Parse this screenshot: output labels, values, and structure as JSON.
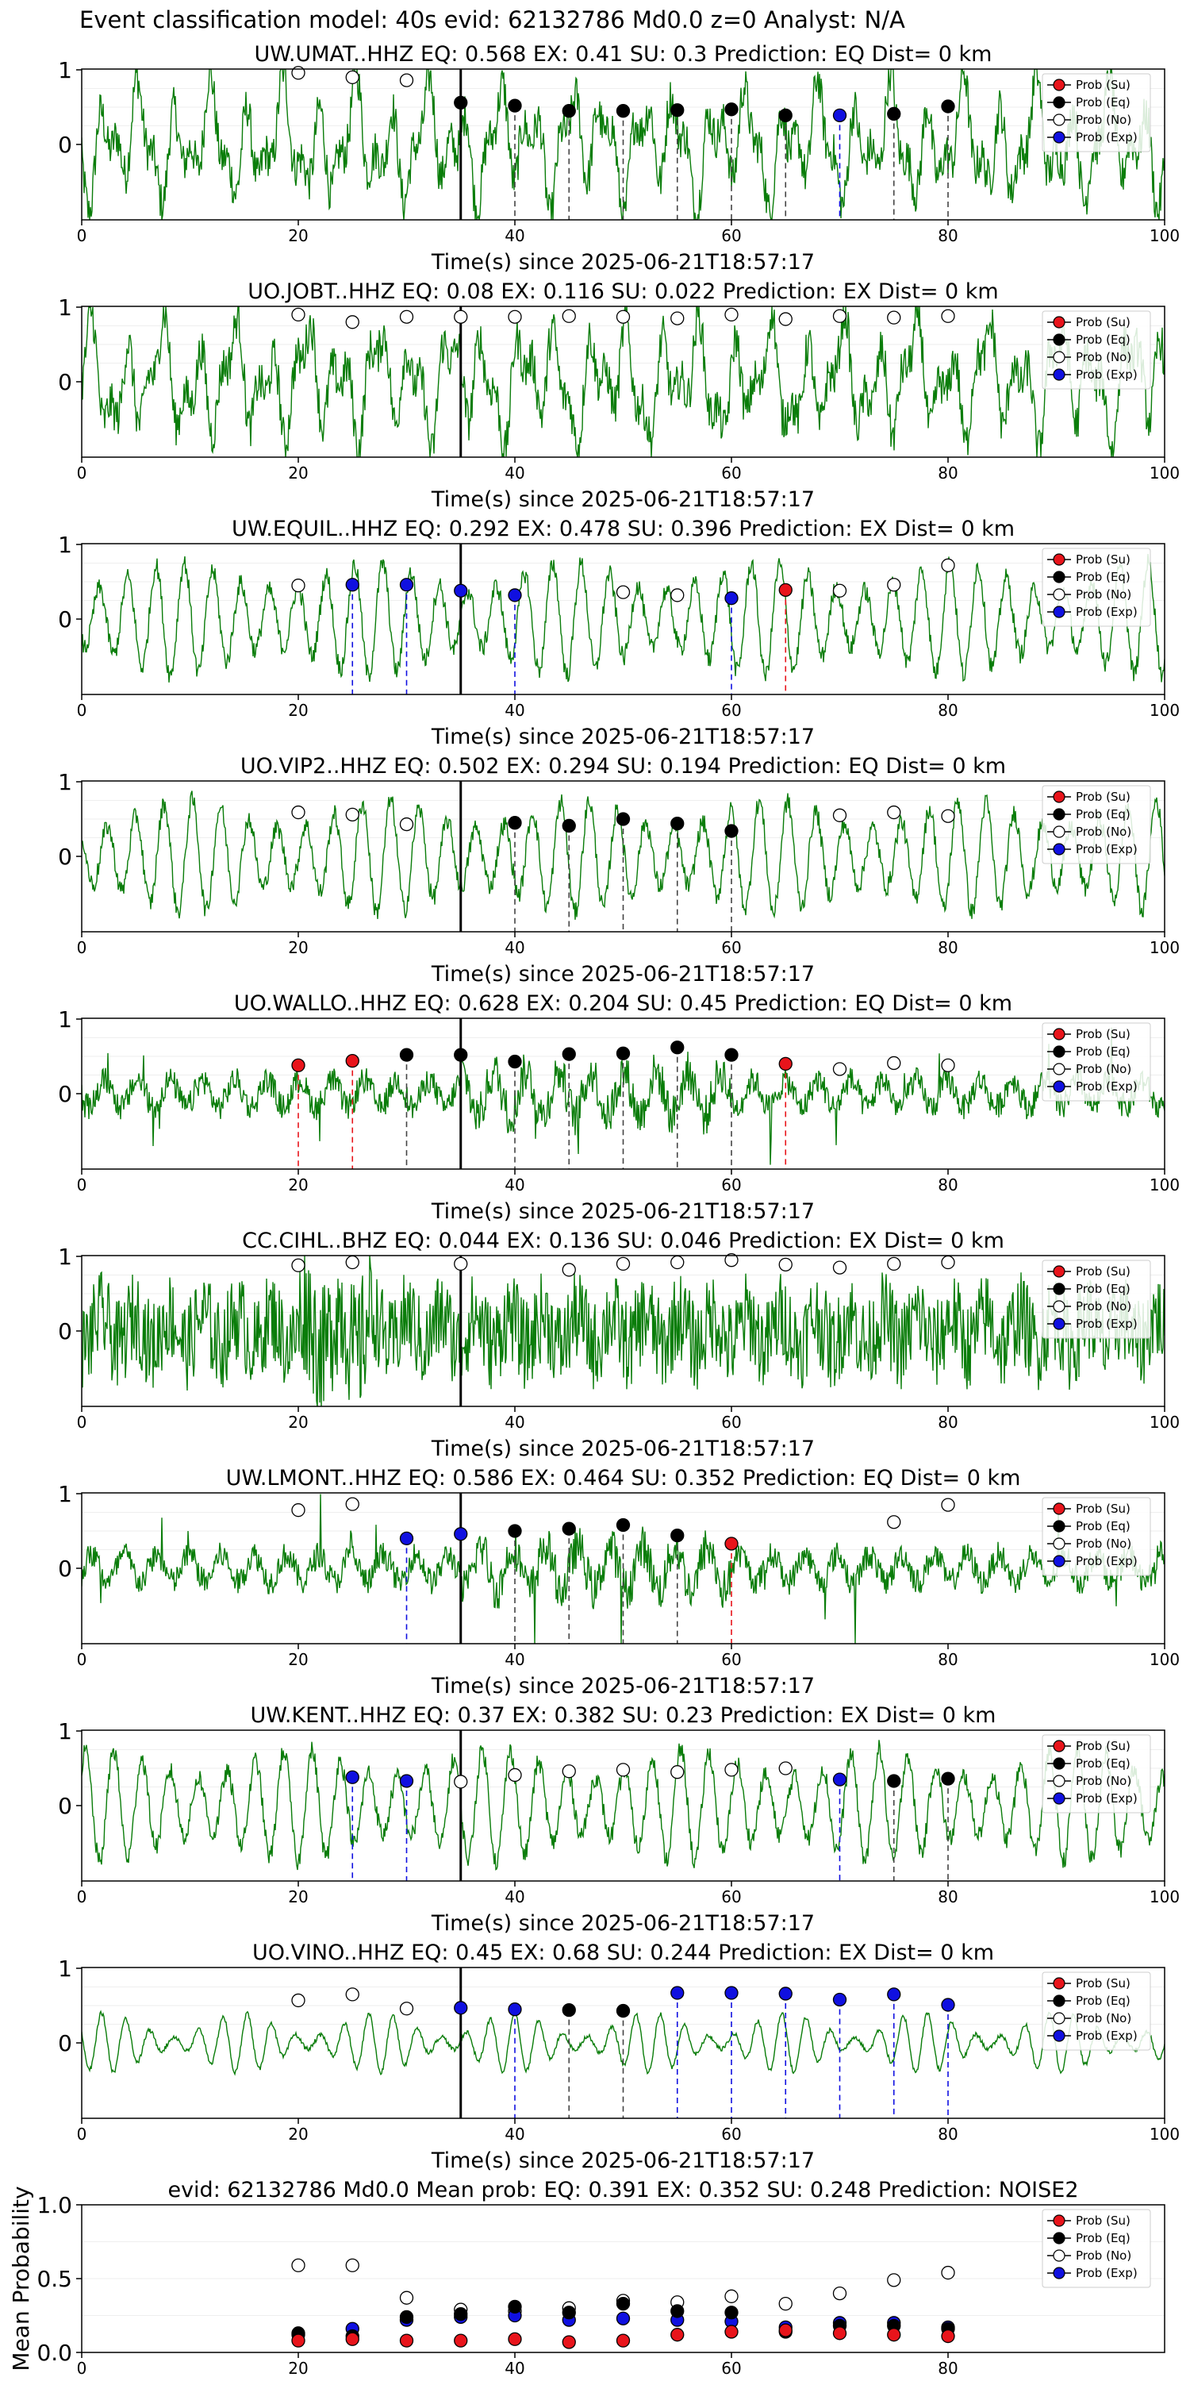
{
  "figure_title": "Event classification model: 40s evid: 62132786 Md0.0 z=0 Analyst: N/A",
  "legend": [
    {
      "label": "Prob (Su)",
      "fill": "#e8141b"
    },
    {
      "label": "Prob (Eq)",
      "fill": "#000000"
    },
    {
      "label": "Prob (No)",
      "fill": "#ffffff"
    },
    {
      "label": "Prob (Exp)",
      "fill": "#1010e0"
    }
  ],
  "colors": {
    "trace": "#0a7d0a",
    "eq": "#000000",
    "su": "#e8141b",
    "no": "#ffffff",
    "exp": "#1010e0",
    "pick": "#000000"
  },
  "chart_data": [
    {
      "type": "line",
      "title": "UW.UMAT..HHZ   EQ: 0.568  EX: 0.41  SU: 0.3   Prediction: EQ    Dist= 0 km",
      "xlabel": "Time(s) since 2025-06-21T18:57:17",
      "xlim": [
        0,
        100
      ],
      "ylim": [
        -1,
        1
      ],
      "xticks": [
        0,
        20,
        40,
        60,
        80,
        100
      ],
      "yticks": [
        0,
        1
      ],
      "pick_time": 35,
      "trace_style": "broadband",
      "points": [
        {
          "t": 20,
          "p": 0.96,
          "c": "No"
        },
        {
          "t": 25,
          "p": 0.9,
          "c": "No"
        },
        {
          "t": 30,
          "p": 0.86,
          "c": "No"
        },
        {
          "t": 35,
          "p": 0.56,
          "c": "Eq"
        },
        {
          "t": 40,
          "p": 0.52,
          "c": "Eq"
        },
        {
          "t": 45,
          "p": 0.45,
          "c": "Eq"
        },
        {
          "t": 50,
          "p": 0.45,
          "c": "Eq"
        },
        {
          "t": 55,
          "p": 0.46,
          "c": "Eq"
        },
        {
          "t": 60,
          "p": 0.47,
          "c": "Eq"
        },
        {
          "t": 65,
          "p": 0.39,
          "c": "Eq"
        },
        {
          "t": 70,
          "p": 0.39,
          "c": "Exp"
        },
        {
          "t": 75,
          "p": 0.41,
          "c": "Eq"
        },
        {
          "t": 80,
          "p": 0.51,
          "c": "Eq"
        }
      ]
    },
    {
      "type": "line",
      "title": "UO.JOBT..HHZ   EQ: 0.08  EX: 0.116  SU: 0.022   Prediction: EX    Dist= 0 km",
      "xlabel": "Time(s) since 2025-06-21T18:57:17",
      "xlim": [
        0,
        100
      ],
      "ylim": [
        -1,
        1
      ],
      "xticks": [
        0,
        20,
        40,
        60,
        80,
        100
      ],
      "yticks": [
        0,
        1
      ],
      "pick_time": 35,
      "trace_style": "broadband",
      "points": [
        {
          "t": 20,
          "p": 0.9,
          "c": "No"
        },
        {
          "t": 25,
          "p": 0.8,
          "c": "No"
        },
        {
          "t": 30,
          "p": 0.87,
          "c": "No"
        },
        {
          "t": 35,
          "p": 0.87,
          "c": "No"
        },
        {
          "t": 40,
          "p": 0.87,
          "c": "No"
        },
        {
          "t": 45,
          "p": 0.88,
          "c": "No"
        },
        {
          "t": 50,
          "p": 0.87,
          "c": "No"
        },
        {
          "t": 55,
          "p": 0.85,
          "c": "No"
        },
        {
          "t": 60,
          "p": 0.9,
          "c": "No"
        },
        {
          "t": 65,
          "p": 0.84,
          "c": "No"
        },
        {
          "t": 70,
          "p": 0.88,
          "c": "No"
        },
        {
          "t": 75,
          "p": 0.86,
          "c": "No"
        },
        {
          "t": 80,
          "p": 0.88,
          "c": "No"
        }
      ]
    },
    {
      "type": "line",
      "title": "UW.EQUIL..HHZ   EQ: 0.292  EX: 0.478  SU: 0.396   Prediction: EX    Dist= 0 km",
      "xlabel": "Time(s) since 2025-06-21T18:57:17",
      "xlim": [
        0,
        100
      ],
      "ylim": [
        -1,
        1
      ],
      "xticks": [
        0,
        20,
        40,
        60,
        80,
        100
      ],
      "yticks": [
        0,
        1
      ],
      "pick_time": 35,
      "trace_style": "oscillating",
      "points": [
        {
          "t": 20,
          "p": 0.45,
          "c": "No"
        },
        {
          "t": 25,
          "p": 0.46,
          "c": "Exp"
        },
        {
          "t": 30,
          "p": 0.46,
          "c": "Exp"
        },
        {
          "t": 35,
          "p": 0.38,
          "c": "Exp"
        },
        {
          "t": 40,
          "p": 0.32,
          "c": "Exp"
        },
        {
          "t": 50,
          "p": 0.36,
          "c": "No"
        },
        {
          "t": 55,
          "p": 0.32,
          "c": "No"
        },
        {
          "t": 60,
          "p": 0.28,
          "c": "Exp"
        },
        {
          "t": 65,
          "p": 0.39,
          "c": "Su"
        },
        {
          "t": 70,
          "p": 0.38,
          "c": "No"
        },
        {
          "t": 75,
          "p": 0.46,
          "c": "No"
        },
        {
          "t": 80,
          "p": 0.72,
          "c": "No"
        }
      ]
    },
    {
      "type": "line",
      "title": "UO.VIP2..HHZ   EQ: 0.502  EX: 0.294  SU: 0.194   Prediction: EQ    Dist= 0 km",
      "xlabel": "Time(s) since 2025-06-21T18:57:17",
      "xlim": [
        0,
        100
      ],
      "ylim": [
        -1,
        1
      ],
      "xticks": [
        0,
        20,
        40,
        60,
        80,
        100
      ],
      "yticks": [
        0,
        1
      ],
      "pick_time": 35,
      "trace_style": "oscillating",
      "points": [
        {
          "t": 20,
          "p": 0.59,
          "c": "No"
        },
        {
          "t": 25,
          "p": 0.56,
          "c": "No"
        },
        {
          "t": 30,
          "p": 0.43,
          "c": "No"
        },
        {
          "t": 40,
          "p": 0.45,
          "c": "Eq"
        },
        {
          "t": 45,
          "p": 0.41,
          "c": "Eq"
        },
        {
          "t": 50,
          "p": 0.5,
          "c": "Eq"
        },
        {
          "t": 55,
          "p": 0.44,
          "c": "Eq"
        },
        {
          "t": 60,
          "p": 0.34,
          "c": "Eq"
        },
        {
          "t": 70,
          "p": 0.55,
          "c": "No"
        },
        {
          "t": 75,
          "p": 0.59,
          "c": "No"
        },
        {
          "t": 80,
          "p": 0.54,
          "c": "No"
        }
      ]
    },
    {
      "type": "line",
      "title": "UO.WALLO..HHZ   EQ: 0.628  EX: 0.204  SU: 0.45   Prediction: EQ    Dist= 0 km",
      "xlabel": "Time(s) since 2025-06-21T18:57:17",
      "xlim": [
        0,
        100
      ],
      "ylim": [
        -1,
        1
      ],
      "xticks": [
        0,
        20,
        40,
        60,
        80,
        100
      ],
      "yticks": [
        0,
        1
      ],
      "pick_time": 35,
      "trace_style": "quiet",
      "points": [
        {
          "t": 20,
          "p": 0.38,
          "c": "Su"
        },
        {
          "t": 25,
          "p": 0.44,
          "c": "Su"
        },
        {
          "t": 30,
          "p": 0.52,
          "c": "Eq"
        },
        {
          "t": 35,
          "p": 0.52,
          "c": "Eq"
        },
        {
          "t": 40,
          "p": 0.43,
          "c": "Eq"
        },
        {
          "t": 45,
          "p": 0.53,
          "c": "Eq"
        },
        {
          "t": 50,
          "p": 0.54,
          "c": "Eq"
        },
        {
          "t": 55,
          "p": 0.62,
          "c": "Eq"
        },
        {
          "t": 60,
          "p": 0.52,
          "c": "Eq"
        },
        {
          "t": 65,
          "p": 0.4,
          "c": "Su"
        },
        {
          "t": 70,
          "p": 0.33,
          "c": "No"
        },
        {
          "t": 75,
          "p": 0.41,
          "c": "No"
        },
        {
          "t": 80,
          "p": 0.38,
          "c": "No"
        }
      ]
    },
    {
      "type": "line",
      "title": "CC.CIHL..BHZ   EQ: 0.044  EX: 0.136  SU: 0.046   Prediction: EX    Dist= 0 km",
      "xlabel": "Time(s) since 2025-06-21T18:57:17",
      "xlim": [
        0,
        100
      ],
      "ylim": [
        -1,
        1
      ],
      "xticks": [
        0,
        20,
        40,
        60,
        80,
        100
      ],
      "yticks": [
        0,
        1
      ],
      "pick_time": 35,
      "trace_style": "noisy",
      "points": [
        {
          "t": 20,
          "p": 0.88,
          "c": "No"
        },
        {
          "t": 25,
          "p": 0.92,
          "c": "No"
        },
        {
          "t": 35,
          "p": 0.9,
          "c": "No"
        },
        {
          "t": 45,
          "p": 0.82,
          "c": "No"
        },
        {
          "t": 50,
          "p": 0.9,
          "c": "No"
        },
        {
          "t": 55,
          "p": 0.92,
          "c": "No"
        },
        {
          "t": 60,
          "p": 0.95,
          "c": "No"
        },
        {
          "t": 65,
          "p": 0.89,
          "c": "No"
        },
        {
          "t": 70,
          "p": 0.85,
          "c": "No"
        },
        {
          "t": 75,
          "p": 0.9,
          "c": "No"
        },
        {
          "t": 80,
          "p": 0.92,
          "c": "No"
        }
      ]
    },
    {
      "type": "line",
      "title": "UW.LMONT..HHZ   EQ: 0.586  EX: 0.464  SU: 0.352   Prediction: EQ    Dist= 0 km",
      "xlabel": "Time(s) since 2025-06-21T18:57:17",
      "xlim": [
        0,
        100
      ],
      "ylim": [
        -1,
        1
      ],
      "xticks": [
        0,
        20,
        40,
        60,
        80,
        100
      ],
      "yticks": [
        0,
        1
      ],
      "pick_time": 35,
      "trace_style": "quiet",
      "points": [
        {
          "t": 20,
          "p": 0.78,
          "c": "No"
        },
        {
          "t": 25,
          "p": 0.86,
          "c": "No"
        },
        {
          "t": 30,
          "p": 0.4,
          "c": "Exp"
        },
        {
          "t": 35,
          "p": 0.46,
          "c": "Exp"
        },
        {
          "t": 40,
          "p": 0.5,
          "c": "Eq"
        },
        {
          "t": 45,
          "p": 0.53,
          "c": "Eq"
        },
        {
          "t": 50,
          "p": 0.58,
          "c": "Eq"
        },
        {
          "t": 55,
          "p": 0.44,
          "c": "Eq"
        },
        {
          "t": 60,
          "p": 0.33,
          "c": "Su"
        },
        {
          "t": 75,
          "p": 0.62,
          "c": "No"
        },
        {
          "t": 80,
          "p": 0.85,
          "c": "No"
        }
      ]
    },
    {
      "type": "line",
      "title": "UW.KENT..HHZ   EQ: 0.37  EX: 0.382  SU: 0.23   Prediction: EX    Dist= 0 km",
      "xlabel": "Time(s) since 2025-06-21T18:57:17",
      "xlim": [
        0,
        100
      ],
      "ylim": [
        -1,
        1
      ],
      "xticks": [
        0,
        20,
        40,
        60,
        80,
        100
      ],
      "yticks": [
        0,
        1
      ],
      "pick_time": 35,
      "trace_style": "oscillating",
      "points": [
        {
          "t": 25,
          "p": 0.38,
          "c": "Exp"
        },
        {
          "t": 30,
          "p": 0.33,
          "c": "Exp"
        },
        {
          "t": 35,
          "p": 0.32,
          "c": "No"
        },
        {
          "t": 40,
          "p": 0.41,
          "c": "No"
        },
        {
          "t": 45,
          "p": 0.46,
          "c": "No"
        },
        {
          "t": 50,
          "p": 0.48,
          "c": "No"
        },
        {
          "t": 55,
          "p": 0.45,
          "c": "No"
        },
        {
          "t": 60,
          "p": 0.48,
          "c": "No"
        },
        {
          "t": 65,
          "p": 0.5,
          "c": "No"
        },
        {
          "t": 70,
          "p": 0.35,
          "c": "Exp"
        },
        {
          "t": 75,
          "p": 0.33,
          "c": "Eq"
        },
        {
          "t": 80,
          "p": 0.36,
          "c": "Eq"
        }
      ]
    },
    {
      "type": "line",
      "title": "UO.VINO..HHZ   EQ: 0.45  EX: 0.68  SU: 0.244   Prediction: EX    Dist= 0 km",
      "xlabel": "Time(s) since 2025-06-21T18:57:17",
      "xlim": [
        0,
        100
      ],
      "ylim": [
        -1,
        1
      ],
      "xticks": [
        0,
        20,
        40,
        60,
        80,
        100
      ],
      "yticks": [
        0,
        1
      ],
      "pick_time": 35,
      "trace_style": "smooth",
      "points": [
        {
          "t": 20,
          "p": 0.57,
          "c": "No"
        },
        {
          "t": 25,
          "p": 0.65,
          "c": "No"
        },
        {
          "t": 30,
          "p": 0.46,
          "c": "No"
        },
        {
          "t": 35,
          "p": 0.47,
          "c": "Exp"
        },
        {
          "t": 40,
          "p": 0.45,
          "c": "Exp"
        },
        {
          "t": 45,
          "p": 0.44,
          "c": "Eq"
        },
        {
          "t": 50,
          "p": 0.43,
          "c": "Eq"
        },
        {
          "t": 55,
          "p": 0.67,
          "c": "Exp"
        },
        {
          "t": 60,
          "p": 0.67,
          "c": "Exp"
        },
        {
          "t": 65,
          "p": 0.66,
          "c": "Exp"
        },
        {
          "t": 70,
          "p": 0.58,
          "c": "Exp"
        },
        {
          "t": 75,
          "p": 0.65,
          "c": "Exp"
        },
        {
          "t": 80,
          "p": 0.51,
          "c": "Exp"
        }
      ]
    },
    {
      "type": "scatter",
      "title": "evid: 62132786  Md0.0   Mean prob:   EQ: 0.391  EX: 0.352  SU: 0.248   Prediction: NOISE2",
      "ylabel": "Mean Probability",
      "xlim": [
        0,
        100
      ],
      "ylim": [
        0,
        1
      ],
      "xticks": [
        0,
        20,
        40,
        60,
        80
      ],
      "yticks": [
        0.0,
        0.5,
        1.0
      ],
      "ytick_labels": [
        "0.0",
        "0.5",
        "1.0"
      ],
      "series": [
        {
          "name": "Prob (No)",
          "x": [
            20,
            25,
            30,
            35,
            40,
            45,
            50,
            55,
            60,
            65,
            70,
            75,
            80
          ],
          "y": [
            0.59,
            0.59,
            0.37,
            0.29,
            0.28,
            0.3,
            0.35,
            0.34,
            0.38,
            0.33,
            0.4,
            0.49,
            0.54
          ]
        },
        {
          "name": "Prob (Exp)",
          "x": [
            20,
            25,
            30,
            35,
            40,
            45,
            50,
            55,
            60,
            65,
            70,
            75,
            80
          ],
          "y": [
            0.12,
            0.16,
            0.22,
            0.24,
            0.25,
            0.22,
            0.23,
            0.22,
            0.21,
            0.17,
            0.2,
            0.2,
            0.17
          ]
        },
        {
          "name": "Prob (Eq)",
          "x": [
            20,
            25,
            30,
            35,
            40,
            45,
            50,
            55,
            60,
            65,
            70,
            75,
            80
          ],
          "y": [
            0.13,
            0.11,
            0.24,
            0.26,
            0.31,
            0.27,
            0.33,
            0.28,
            0.27,
            0.14,
            0.18,
            0.18,
            0.16
          ]
        },
        {
          "name": "Prob (Su)",
          "x": [
            20,
            25,
            30,
            35,
            40,
            45,
            50,
            55,
            60,
            65,
            70,
            75,
            80
          ],
          "y": [
            0.08,
            0.09,
            0.08,
            0.08,
            0.09,
            0.07,
            0.08,
            0.12,
            0.14,
            0.15,
            0.13,
            0.12,
            0.11
          ]
        }
      ]
    }
  ]
}
